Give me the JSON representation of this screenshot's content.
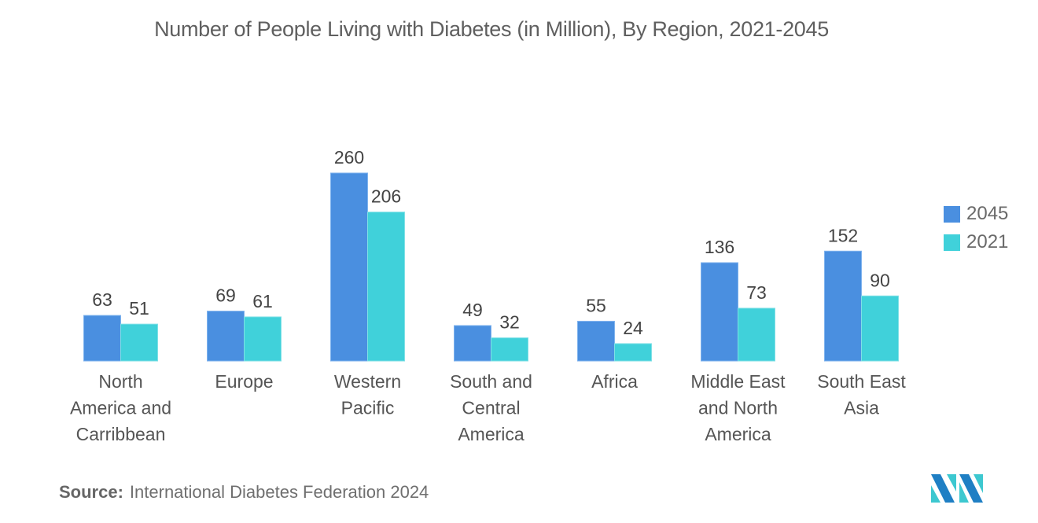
{
  "chart_data": {
    "type": "bar",
    "title": "Number of People Living with Diabetes (in Million), By Region, 2021-2045",
    "xlabel": "",
    "ylabel": "",
    "ylim": [
      0,
      260
    ],
    "grid": false,
    "legend_position": "right",
    "categories": [
      "North America and Carribbean",
      "Europe",
      "Western Pacific",
      "South and Central America",
      "Africa",
      "Middle East and North America",
      "South East Asia"
    ],
    "category_lines": [
      [
        "North",
        "America and",
        "Carribbean"
      ],
      [
        "Europe"
      ],
      [
        "Western",
        "Pacific"
      ],
      [
        "South and",
        "Central",
        "America"
      ],
      [
        "Africa"
      ],
      [
        "Middle East",
        "and North",
        "America"
      ],
      [
        "South East",
        "Asia"
      ]
    ],
    "series": [
      {
        "name": "2045",
        "color": "#4A8FE0",
        "values": [
          63,
          69,
          260,
          49,
          55,
          136,
          152
        ]
      },
      {
        "name": "2021",
        "color": "#40D1DA",
        "values": [
          51,
          61,
          206,
          32,
          24,
          73,
          90
        ]
      }
    ]
  },
  "source": {
    "label": "Source:",
    "text": "International Diabetes Federation 2024"
  },
  "logo": {
    "icon": "mordor-intelligence-logo"
  }
}
